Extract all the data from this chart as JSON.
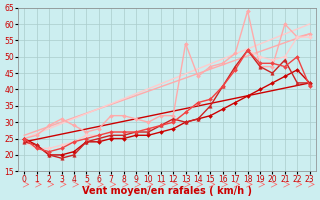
{
  "title": "",
  "xlabel": "Vent moyen/en rafales ( km/h )",
  "ylabel": "",
  "bg_color": "#cceef0",
  "grid_color": "#aacccc",
  "xlim": [
    -0.5,
    23.5
  ],
  "ylim": [
    15,
    65
  ],
  "yticks": [
    15,
    20,
    25,
    30,
    35,
    40,
    45,
    50,
    55,
    60,
    65
  ],
  "xticks": [
    0,
    1,
    2,
    3,
    4,
    5,
    6,
    7,
    8,
    9,
    10,
    11,
    12,
    13,
    14,
    15,
    16,
    17,
    18,
    19,
    20,
    21,
    22,
    23
  ],
  "series": [
    {
      "x": [
        0,
        23
      ],
      "y": [
        24,
        42
      ],
      "color": "#cc0000",
      "lw": 1.0,
      "marker": null,
      "ms": 0,
      "zorder": 2
    },
    {
      "x": [
        0,
        23
      ],
      "y": [
        26,
        57
      ],
      "color": "#ffaaaa",
      "lw": 1.0,
      "marker": null,
      "ms": 0,
      "zorder": 2
    },
    {
      "x": [
        0,
        23
      ],
      "y": [
        25,
        60
      ],
      "color": "#ffcccc",
      "lw": 1.0,
      "marker": null,
      "ms": 0,
      "zorder": 2
    },
    {
      "x": [
        0,
        1,
        2,
        3,
        4,
        5,
        6,
        7,
        8,
        9,
        10,
        11,
        12,
        13,
        14,
        15,
        16,
        17,
        18,
        19,
        20,
        21,
        22,
        23
      ],
      "y": [
        25,
        23,
        20,
        20,
        21,
        24,
        24,
        25,
        25,
        26,
        26,
        27,
        28,
        30,
        31,
        32,
        34,
        36,
        38,
        40,
        42,
        44,
        46,
        42
      ],
      "color": "#cc0000",
      "lw": 1.0,
      "marker": "D",
      "ms": 2.0,
      "zorder": 4
    },
    {
      "x": [
        0,
        1,
        2,
        3,
        4,
        5,
        6,
        7,
        8,
        9,
        10,
        11,
        12,
        13,
        14,
        15,
        16,
        17,
        18,
        19,
        20,
        21,
        22,
        23
      ],
      "y": [
        24,
        23,
        20,
        19,
        20,
        24,
        25,
        26,
        26,
        27,
        27,
        29,
        31,
        30,
        31,
        35,
        41,
        47,
        52,
        47,
        45,
        49,
        42,
        42
      ],
      "color": "#cc2222",
      "lw": 1.0,
      "marker": "^",
      "ms": 2.5,
      "zorder": 4
    },
    {
      "x": [
        0,
        1,
        2,
        3,
        4,
        5,
        6,
        7,
        8,
        9,
        10,
        11,
        12,
        13,
        14,
        15,
        16,
        17,
        18,
        19,
        20,
        21,
        22,
        23
      ],
      "y": [
        25,
        22,
        21,
        22,
        24,
        25,
        26,
        27,
        27,
        27,
        28,
        29,
        30,
        33,
        36,
        37,
        41,
        46,
        52,
        48,
        48,
        47,
        50,
        41
      ],
      "color": "#ee4444",
      "lw": 1.0,
      "marker": "D",
      "ms": 2.0,
      "zorder": 4
    },
    {
      "x": [
        0,
        1,
        2,
        3,
        4,
        5,
        6,
        7,
        8,
        9,
        10,
        11,
        12,
        13,
        14,
        15,
        16,
        17,
        18,
        19,
        20,
        21,
        22,
        23
      ],
      "y": [
        25,
        26,
        29,
        31,
        29,
        27,
        28,
        32,
        32,
        31,
        30,
        32,
        32,
        54,
        44,
        47,
        48,
        51,
        64,
        47,
        47,
        60,
        56,
        57
      ],
      "color": "#ffaaaa",
      "lw": 1.0,
      "marker": "D",
      "ms": 2.0,
      "zorder": 3
    },
    {
      "x": [
        0,
        1,
        2,
        3,
        4,
        5,
        6,
        7,
        8,
        9,
        10,
        11,
        12,
        13,
        14,
        15,
        16,
        17,
        18,
        19,
        20,
        21,
        22,
        23
      ],
      "y": [
        24,
        22,
        22,
        23,
        24,
        26,
        26,
        27,
        27,
        27,
        28,
        29,
        30,
        33,
        36,
        37,
        41,
        46,
        52,
        50,
        49,
        50,
        56,
        56
      ],
      "color": "#ffcccc",
      "lw": 1.0,
      "marker": "D",
      "ms": 2.0,
      "zorder": 3
    }
  ],
  "arrow_color": "#ff6666",
  "xlabel_color": "#cc0000",
  "xlabel_fontsize": 7,
  "tick_fontsize": 5.5,
  "tick_color": "#cc0000"
}
